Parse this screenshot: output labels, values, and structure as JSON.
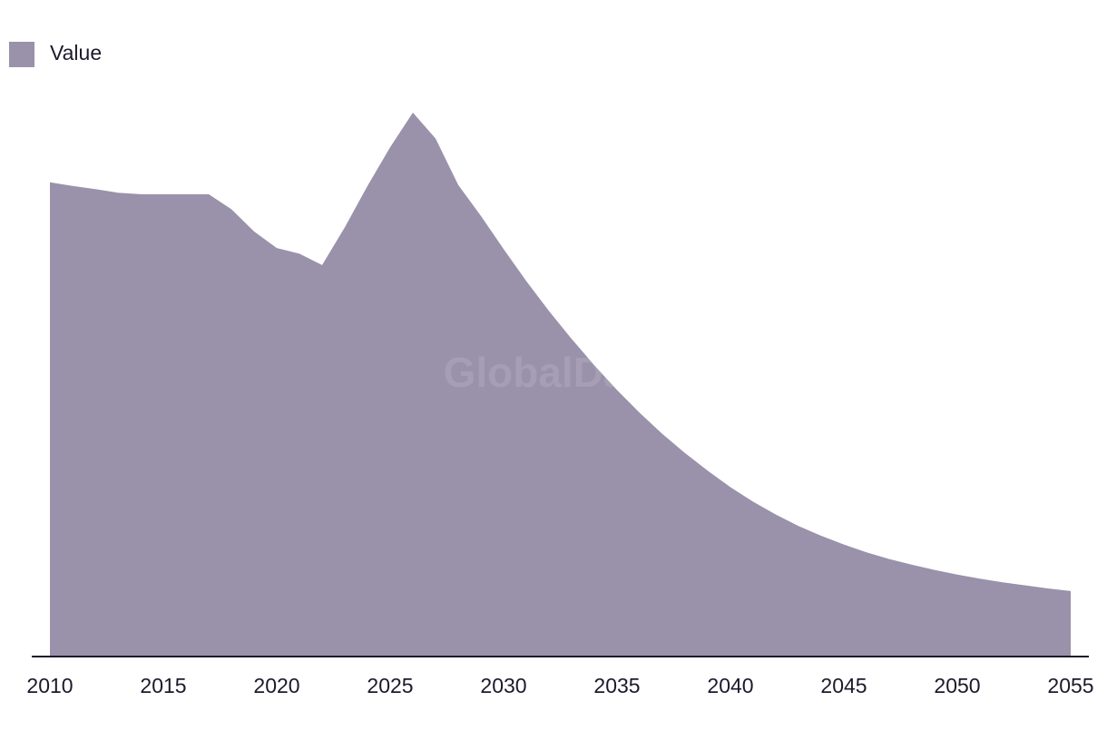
{
  "watermark": "GlobalData",
  "chart_data": {
    "type": "area",
    "title": "",
    "xlabel": "",
    "ylabel": "",
    "legend": {
      "position": "top-left",
      "entries": [
        {
          "name": "Value",
          "color": "#9a91aa"
        }
      ]
    },
    "grid": false,
    "x": [
      2010,
      2011,
      2012,
      2013,
      2014,
      2015,
      2016,
      2017,
      2018,
      2019,
      2020,
      2021,
      2022,
      2023,
      2024,
      2025,
      2026,
      2027,
      2028,
      2029,
      2030,
      2031,
      2032,
      2033,
      2034,
      2035,
      2036,
      2037,
      2038,
      2039,
      2040,
      2041,
      2042,
      2043,
      2044,
      2045,
      2046,
      2047,
      2048,
      2049,
      2050,
      2051,
      2052,
      2053,
      2054,
      2055
    ],
    "series": [
      {
        "name": "Value",
        "color": "#9a91aa",
        "values": [
          86.5,
          85.8,
          85.2,
          84.5,
          84.2,
          84.2,
          84.2,
          84.2,
          81.3,
          77.0,
          73.8,
          72.7,
          70.5,
          77.8,
          85.8,
          93.3,
          100.0,
          95.0,
          86.0,
          80.0,
          73.6,
          67.4,
          61.6,
          56.2,
          51.1,
          46.3,
          41.9,
          37.8,
          34.1,
          30.7,
          27.5,
          24.7,
          22.2,
          20.0,
          18.1,
          16.4,
          14.9,
          13.6,
          12.5,
          11.5,
          10.6,
          9.8,
          9.1,
          8.5,
          7.9,
          7.4
        ]
      }
    ],
    "xlim": [
      2010,
      2055
    ],
    "ylim": [
      -5,
      100
    ],
    "x_ticks": [
      "2010",
      "2015",
      "2020",
      "2025",
      "2030",
      "2035",
      "2040",
      "2045",
      "2050",
      "2055"
    ],
    "axis_color": "#1b1a2c"
  }
}
